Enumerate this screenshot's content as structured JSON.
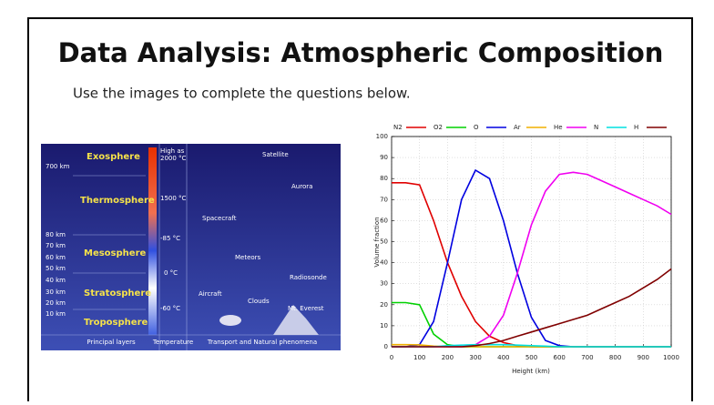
{
  "header": {
    "title": "Data Analysis: Atmospheric Composition",
    "instruction": "Use the images to complete the questions below."
  },
  "diagram": {
    "layers": [
      "Exosphere",
      "Thermosphere",
      "Mesosphere",
      "Stratosphere",
      "Troposphere"
    ],
    "altitudes": [
      "700 km",
      "80 km",
      "70 km",
      "60 km",
      "50 km",
      "40 km",
      "30 km",
      "20 km",
      "10 km"
    ],
    "temperatures": [
      "High as",
      "2000 °C",
      "1500 °C",
      "-85 °C",
      "0 °C",
      "-60 °C"
    ],
    "phenomena": [
      "Satellite",
      "Aurora",
      "Spacecraft",
      "Meteors",
      "Radiosonde",
      "Aircraft",
      "Clouds",
      "Mt. Everest"
    ],
    "footer": [
      "Principal layers",
      "Temperature",
      "Transport and Natural phenomena"
    ]
  },
  "chart_data": {
    "type": "line",
    "x_label": "Height (km)",
    "y_label": "Volume fraction",
    "x": [
      0,
      50,
      100,
      150,
      200,
      250,
      300,
      350,
      400,
      450,
      500,
      550,
      600,
      650,
      700,
      750,
      800,
      850,
      900,
      950,
      1000
    ],
    "series": [
      {
        "name": "N2",
        "color": "#e00000",
        "values": [
          78,
          78,
          77,
          60,
          40,
          24,
          12,
          5,
          2,
          0.5,
          0,
          0,
          0,
          0,
          0,
          0,
          0,
          0,
          0,
          0,
          0
        ]
      },
      {
        "name": "O2",
        "color": "#00d000",
        "values": [
          21,
          21,
          20,
          6,
          1,
          0,
          0,
          0,
          0,
          0,
          0,
          0,
          0,
          0,
          0,
          0,
          0,
          0,
          0,
          0,
          0
        ]
      },
      {
        "name": "O",
        "color": "#0000e0",
        "values": [
          0,
          0,
          1,
          12,
          40,
          70,
          84,
          80,
          60,
          35,
          14,
          3,
          0.5,
          0,
          0,
          0,
          0,
          0,
          0,
          0,
          0
        ]
      },
      {
        "name": "Ar",
        "color": "#f0b000",
        "values": [
          1,
          1,
          0.9,
          0.3,
          0,
          0,
          0,
          0,
          0,
          0,
          0,
          0,
          0,
          0,
          0,
          0,
          0,
          0,
          0,
          0,
          0
        ]
      },
      {
        "name": "He",
        "color": "#f000f0",
        "values": [
          0,
          0,
          0,
          0,
          0,
          0,
          1,
          5,
          15,
          35,
          58,
          74,
          82,
          83,
          82,
          79,
          76,
          73,
          70,
          67,
          63
        ]
      },
      {
        "name": "N",
        "color": "#00e0e0",
        "values": [
          0,
          0,
          0,
          0,
          0.5,
          0.8,
          1,
          1,
          1,
          0.8,
          0.5,
          0.3,
          0,
          0,
          0,
          0,
          0,
          0,
          0,
          0,
          0
        ]
      },
      {
        "name": "H",
        "color": "#800000",
        "values": [
          0,
          0,
          0,
          0,
          0,
          0,
          0.5,
          1.5,
          3,
          5,
          7,
          9,
          11,
          13,
          15,
          18,
          21,
          24,
          28,
          32,
          37
        ]
      }
    ],
    "xlim": [
      0,
      1000
    ],
    "ylim": [
      0,
      100
    ],
    "xticks": [
      0,
      100,
      200,
      300,
      400,
      500,
      600,
      700,
      800,
      900,
      1000
    ],
    "yticks": [
      0,
      10,
      20,
      30,
      40,
      50,
      60,
      70,
      80,
      90,
      100
    ],
    "grid": true
  }
}
